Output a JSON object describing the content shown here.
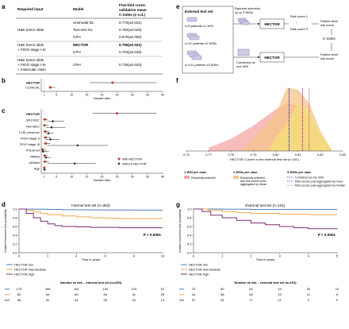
{
  "colors": {
    "hector": "#c0392b",
    "other": "#222222",
    "low": "#4f7fc2",
    "intermediate": "#f0a64a",
    "high": "#7b2d7a",
    "random": "#f4a6a6",
    "agg2": "#f6c48a",
    "agg3": "#f3e07a",
    "blue_line": "#2b2fa6",
    "magenta_line": "#c01a8e"
  },
  "panels": {
    "a": "a",
    "b": "b",
    "c": "c",
    "d": "d",
    "e": "e",
    "f": "f",
    "g": "g"
  },
  "table_a": {
    "headers": [
      "Required input",
      "Model",
      "Five-fold cross-validation mean C-index (± s.d.)"
    ],
    "header_line1": "Five-fold cross-",
    "header_line2": "validation mean",
    "header_line3": "C-index (± s.d.)",
    "rows": [
      {
        "input": "",
        "model": "Unimodal DL",
        "value": "0.775(±0.031)"
      },
      {
        "input": "H&E tumor slide",
        "model": "Two-arm DL",
        "value": "0.782(±0.026)"
      },
      {
        "input": "",
        "model": "CPH",
        "value": "0.676(±0.060)"
      },
      {
        "input": "H&E tumor slide",
        "model": "HECTOR",
        "value": "0.795(±0.031)"
      },
      {
        "input": "+ FIGO stage I-III",
        "model": "CPH",
        "value": "0.723(±0.045)"
      },
      {
        "input": "H&E tumor slide",
        "model": "CPH",
        "value": "0.736(±0.033)"
      }
    ],
    "last_input_lines": [
      "H&E tumor slide",
      "+ FIGO stage I-III",
      "+ molecular class"
    ]
  },
  "chart_data": [
    {
      "type": "forest",
      "panel": "b",
      "xlabel": "Hazard ratio",
      "categories": [
        "HECTOR",
        "CLINICAL"
      ],
      "ticks": [
        1,
        5,
        10,
        15,
        20,
        25,
        30,
        35,
        40
      ],
      "values": [
        {
          "name": "HECTOR",
          "hr": 23.5,
          "low": 16,
          "high": 38
        },
        {
          "name": "CLINICAL",
          "hr": 3.0,
          "low": 2.4,
          "high": 4.6
        }
      ]
    },
    {
      "type": "forest",
      "panel": "c",
      "xlabel": "Hazard ratio",
      "categories": [
        "HECTOR",
        "GR3 EEC",
        "Non-EEC",
        "LVSI presence",
        "FIGO stage II",
        "FIGO stage III",
        "POLEmut",
        "MMRd",
        "p53abn",
        "Age"
      ],
      "ticks": [
        1,
        5,
        10,
        15,
        20,
        25,
        30,
        35,
        40
      ],
      "legend": [
        "with HECTOR",
        "without HECTOR"
      ],
      "with_hector": [
        {
          "name": "HECTOR",
          "hr": 25,
          "low": 17,
          "high": 38
        },
        {
          "name": "GR3 EEC",
          "hr": 1.2,
          "low": 0.6,
          "high": 2.2
        },
        {
          "name": "Non-EEC",
          "hr": 1.1,
          "low": 0.5,
          "high": 2.4
        },
        {
          "name": "LVSI presence",
          "hr": 1.3,
          "low": 0.7,
          "high": 2.5
        },
        {
          "name": "FIGO stage II",
          "hr": 1.4,
          "low": 0.7,
          "high": 3.0
        },
        {
          "name": "FIGO stage III",
          "hr": 1.5,
          "low": 0.8,
          "high": 3.0
        },
        {
          "name": "POLEmut",
          "hr": 0.4,
          "low": 0.1,
          "high": 1.7
        },
        {
          "name": "MMRd",
          "hr": 1.1,
          "low": 0.6,
          "high": 2.1
        },
        {
          "name": "p53abn",
          "hr": 1.2,
          "low": 0.6,
          "high": 2.5
        },
        {
          "name": "Age",
          "hr": 1.0,
          "low": 0.9,
          "high": 1.2
        }
      ],
      "without_hector": [
        {
          "name": "GR3 EEC",
          "hr": 3.8,
          "low": 1.9,
          "high": 7.5
        },
        {
          "name": "Non-EEC",
          "hr": 3.4,
          "low": 1.5,
          "high": 8
        },
        {
          "name": "LVSI presence",
          "hr": 2.4,
          "low": 1.4,
          "high": 4.2
        },
        {
          "name": "FIGO stage II",
          "hr": 3.0,
          "low": 1.5,
          "high": 6
        },
        {
          "name": "FIGO stage III",
          "hr": 12,
          "low": 2,
          "high": 22
        },
        {
          "name": "POLEmut",
          "hr": 0.6,
          "low": 0.2,
          "high": 2.5
        },
        {
          "name": "MMRd",
          "hr": 1.6,
          "low": 0.8,
          "high": 3.2
        },
        {
          "name": "p53abn",
          "hr": 11,
          "low": 2,
          "high": 18
        },
        {
          "name": "Age",
          "hr": 1.1,
          "low": 0.9,
          "high": 1.3
        }
      ]
    },
    {
      "type": "line",
      "panel": "d",
      "title": "Internal test set (n=353)",
      "xlabel": "Time in years",
      "ylabel": "Distant recurrence-free probability",
      "xlim": [
        0,
        10
      ],
      "ylim": [
        0,
        1
      ],
      "xticks": [
        0,
        2,
        4,
        6,
        8,
        10
      ],
      "yticks": [
        0.0,
        0.2,
        0.4,
        0.6,
        0.8,
        1.0
      ],
      "pvalue": "P < 0.0001",
      "series": [
        {
          "name": "HECTOR low",
          "x": [
            0,
            0.5,
            1,
            2,
            3,
            4,
            5,
            6,
            7,
            8,
            9,
            10
          ],
          "y": [
            1,
            0.998,
            0.995,
            0.99,
            0.985,
            0.982,
            0.98,
            0.978,
            0.978,
            0.976,
            0.976,
            0.976
          ]
        },
        {
          "name": "HECTOR intermediate",
          "x": [
            0,
            0.5,
            1,
            1.5,
            2,
            3,
            4,
            5,
            6,
            7,
            8,
            10
          ],
          "y": [
            1,
            0.97,
            0.93,
            0.9,
            0.87,
            0.84,
            0.82,
            0.8,
            0.79,
            0.78,
            0.78,
            0.78
          ]
        },
        {
          "name": "HECTOR high",
          "x": [
            0,
            0.5,
            1,
            1.5,
            2,
            2.5,
            3,
            4,
            5,
            6,
            7,
            10
          ],
          "y": [
            1,
            0.9,
            0.8,
            0.72,
            0.66,
            0.62,
            0.6,
            0.59,
            0.58,
            0.58,
            0.57,
            0.57
          ]
        }
      ],
      "risk_table_title": "Number at risk – internal test set (n=353)",
      "risk_table": [
        {
          "name": "HECTOR low",
          "values": [
            "175",
            "169",
            "161",
            "140",
            "124",
            "97"
          ]
        },
        {
          "name": "HECTOR intermediate",
          "values": [
            "82",
            "69",
            "60",
            "55",
            "41",
            "29"
          ]
        },
        {
          "name": "HECTOR high",
          "values": [
            "96",
            "61",
            "44",
            "35",
            "20",
            "13"
          ]
        }
      ]
    },
    {
      "type": "area",
      "panel": "f",
      "xlabel": "HECTOR C-index in the external test set (n=151)",
      "xlim": [
        0.76,
        0.83
      ],
      "xticks": [
        "0.76",
        "0.77",
        "0.78",
        "0.79",
        "0.80",
        "0.81",
        "0.82",
        "0.83"
      ],
      "series": [
        {
          "name": "1 WSI per case",
          "label": "Randomly selected",
          "x": [
            0.77,
            0.78,
            0.79,
            0.8,
            0.805,
            0.81,
            0.82,
            0.825
          ],
          "y": [
            0.05,
            0.18,
            0.38,
            0.62,
            0.72,
            0.68,
            0.25,
            0.02
          ]
        },
        {
          "name": "2 WSIs per case",
          "label": "Randomly selected and risk scores post-aggregated by mean",
          "x": [
            0.785,
            0.79,
            0.8,
            0.805,
            0.81,
            0.815,
            0.82,
            0.825
          ],
          "y": [
            0.02,
            0.18,
            0.55,
            0.95,
            0.92,
            0.72,
            0.3,
            0.02
          ]
        },
        {
          "name": "3 WSIs per case",
          "x": [
            0.797,
            0.8,
            0.805,
            0.81,
            0.815,
            0.82,
            0.825
          ],
          "y": [
            0.02,
            0.2,
            0.4,
            0.72,
            0.62,
            0.28,
            0.02
          ]
        }
      ],
      "vlines": [
        {
          "label": "Combined as one WSI",
          "x": 0.806
        },
        {
          "label": "Risk scores post-aggregated by mean",
          "x": 0.812
        },
        {
          "label": "Risk scores post-aggregated by median",
          "x": 0.815
        }
      ]
    },
    {
      "type": "line",
      "panel": "g",
      "title": "External test set (n=151)",
      "xlabel": "Time in years",
      "ylabel": "Distant recurrence-free probability",
      "xlim": [
        0,
        5
      ],
      "ylim": [
        0,
        1
      ],
      "xticks": [
        0,
        1,
        2,
        3,
        4,
        5
      ],
      "yticks": [
        0.0,
        0.2,
        0.4,
        0.6,
        0.8,
        1.0
      ],
      "pvalue": "P < 0.0001",
      "series": [
        {
          "name": "HECTOR low",
          "x": [
            0,
            0.5,
            1,
            2,
            3,
            4,
            5
          ],
          "y": [
            1,
            1,
            0.995,
            0.99,
            0.99,
            0.99,
            0.99
          ]
        },
        {
          "name": "HECTOR intermediate",
          "x": [
            0,
            0.5,
            1,
            1.5,
            2,
            3,
            4,
            5
          ],
          "y": [
            1,
            0.97,
            0.94,
            0.92,
            0.9,
            0.88,
            0.87,
            0.87
          ]
        },
        {
          "name": "HECTOR high",
          "x": [
            0,
            0.3,
            0.6,
            1,
            1.5,
            2,
            2.5,
            3,
            3.5,
            4,
            5
          ],
          "y": [
            1,
            0.94,
            0.86,
            0.8,
            0.74,
            0.68,
            0.64,
            0.6,
            0.57,
            0.55,
            0.54
          ]
        }
      ],
      "risk_table_title": "Number at risk – external test set (n=151)",
      "risk_table": [
        {
          "name": "HECTOR low",
          "values": [
            "70",
            "60",
            "54",
            "44",
            "30",
            "10"
          ]
        },
        {
          "name": "HECTOR intermediate",
          "values": [
            "44",
            "38",
            "28",
            "20",
            "12",
            "6"
          ]
        },
        {
          "name": "HECTOR high",
          "values": [
            "37",
            "25",
            "17",
            "11",
            "9",
            "5"
          ]
        }
      ]
    }
  ],
  "diagram_e": {
    "ext_title": "External test set",
    "groups": [
      "n=9 patients x1 WSI",
      "n=21 patients x2 WSIs",
      "n=121 patients x3 WSIs"
    ],
    "random_sel": [
      "Random selection",
      "up to 3 WSIs"
    ],
    "combined": [
      "Combined as",
      "one WSI"
    ],
    "hector": "HECTOR",
    "risk1": "Risk score 1",
    "risk3": "Risk score 3",
    "dots": "⋮",
    "patient_level": [
      "Patient-level",
      "risk score"
    ],
    "cindex": "C-index"
  },
  "legend_f": {
    "h1": "1 WSI per case",
    "h2": "2 WSIs per case",
    "h3": "3 WSIs per case",
    "r1": "Randomly selected",
    "r2a": "Randomly selected",
    "r2b": "and risk scores post-",
    "r2c": "aggregated by mean",
    "l1": "Combined as one WSI",
    "l2": "Risk scores post-aggregated by mean",
    "l3": "Risk scores post-aggregated by median"
  },
  "km_legend": [
    "HECTOR low",
    "HECTOR intermediate",
    "HECTOR high"
  ]
}
